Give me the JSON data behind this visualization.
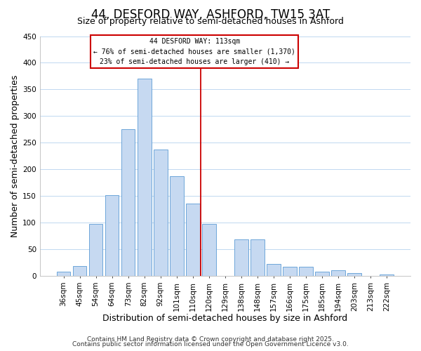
{
  "title": "44, DESFORD WAY, ASHFORD, TW15 3AT",
  "subtitle": "Size of property relative to semi-detached houses in Ashford",
  "xlabel": "Distribution of semi-detached houses by size in Ashford",
  "ylabel": "Number of semi-detached properties",
  "bar_labels": [
    "36sqm",
    "45sqm",
    "54sqm",
    "64sqm",
    "73sqm",
    "82sqm",
    "92sqm",
    "101sqm",
    "110sqm",
    "120sqm",
    "129sqm",
    "138sqm",
    "148sqm",
    "157sqm",
    "166sqm",
    "175sqm",
    "185sqm",
    "194sqm",
    "203sqm",
    "213sqm",
    "222sqm"
  ],
  "bar_values": [
    8,
    18,
    97,
    152,
    276,
    370,
    237,
    187,
    136,
    97,
    0,
    68,
    68,
    22,
    17,
    17,
    8,
    10,
    5,
    0,
    3
  ],
  "bar_color": "#c6d9f1",
  "bar_edge_color": "#5b9bd5",
  "vline_index": 8,
  "vline_color": "#cc0000",
  "annotation_title": "44 DESFORD WAY: 113sqm",
  "annotation_line1": "← 76% of semi-detached houses are smaller (1,370)",
  "annotation_line2": "23% of semi-detached houses are larger (410) →",
  "annotation_box_color": "#ffffff",
  "annotation_box_edge": "#cc0000",
  "ylim": [
    0,
    450
  ],
  "yticks": [
    0,
    50,
    100,
    150,
    200,
    250,
    300,
    350,
    400,
    450
  ],
  "footer1": "Contains HM Land Registry data © Crown copyright and database right 2025.",
  "footer2": "Contains public sector information licensed under the Open Government Licence v3.0.",
  "bg_color": "#ffffff",
  "grid_color": "#c0d8f0",
  "title_fontsize": 12,
  "subtitle_fontsize": 9,
  "axis_label_fontsize": 9,
  "tick_fontsize": 7.5,
  "footer_fontsize": 6.5
}
